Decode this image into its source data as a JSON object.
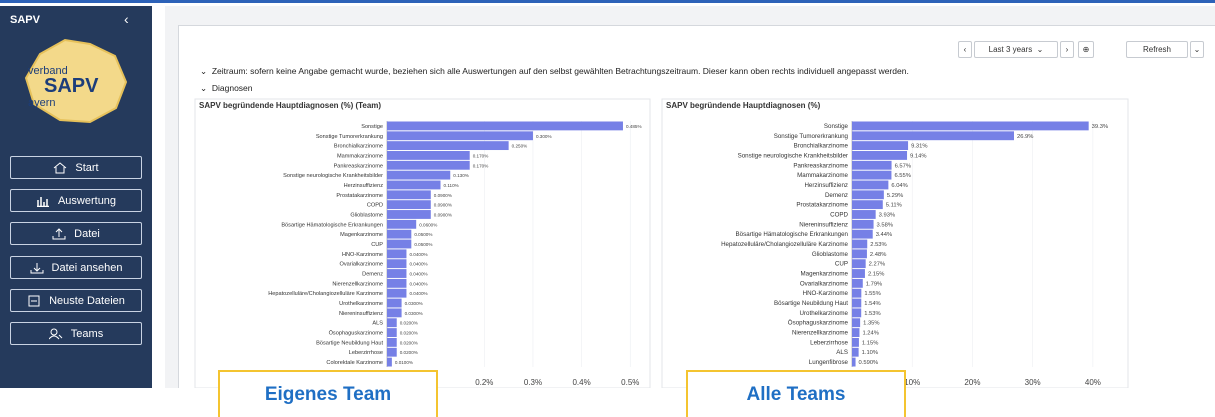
{
  "sidebar": {
    "title": "SAPV",
    "logo": {
      "top": "verband",
      "main": "SAPV",
      "bottom": "ayern"
    },
    "nav": [
      "Start",
      "Auswertung",
      "Datei",
      "Datei ansehen",
      "Neuste Dateien",
      "Teams"
    ]
  },
  "toolbar": {
    "range": "Last 3 years",
    "refresh": "Refresh"
  },
  "sections": [
    "Zeitraum: sofern keine Angabe gemacht wurde, beziehen sich alle Auswertungen auf den selbst gewählten Betrachtungszeitraum. Dieser kann oben rechts individuell angepasst werden.",
    "Diagnosen"
  ],
  "chart_data": [
    {
      "type": "bar",
      "orientation": "horizontal",
      "title": "SAPV begründende Hauptdiagnosen (%) (Team)",
      "color": "#7680e6",
      "grid": true,
      "categories": [
        "Sonstige",
        "Sonstige Tumorerkrankung",
        "Bronchialkarzinome",
        "Mammakarzinome",
        "Pankreaskarzinome",
        "Sonstige neurologische Krankheitsbilder",
        "Herzinsuffizienz",
        "Prostatakarzinome",
        "COPD",
        "Glioblastome",
        "Bösartige Hämatologische Erkrankungen",
        "Magenkarzinome",
        "CUP",
        "HNO-Karzinome",
        "Ovarialkarzinome",
        "Demenz",
        "Nierenzellkarzinome",
        "Hepatozelluläre/Cholangiozelluläre Karzinome",
        "Urothelkarzinome",
        "Niereninsuffizienz",
        "ALS",
        "Ösophaguskarzinome",
        "Bösartige Neubildung Haut",
        "Leberzirrhose",
        "Colorektale Karzinome"
      ],
      "values": [
        0.485,
        0.3,
        0.25,
        0.17,
        0.17,
        0.13,
        0.11,
        0.09,
        0.09,
        0.09,
        0.06,
        0.05,
        0.05,
        0.04,
        0.04,
        0.04,
        0.04,
        0.04,
        0.03,
        0.03,
        0.02,
        0.02,
        0.02,
        0.02,
        0.01
      ],
      "value_labels": [
        "0.485%",
        "0.300%",
        "0.250%",
        "0.170%",
        "0.170%",
        "0.130%",
        "0.110%",
        "0.0900%",
        "0.0900%",
        "0.0900%",
        "0.0600%",
        "0.0500%",
        "0.0500%",
        "0.0400%",
        "0.0400%",
        "0.0400%",
        "0.0400%",
        "0.0400%",
        "0.0300%",
        "0.0300%",
        "0.0200%",
        "0.0200%",
        "0.0200%",
        "0.0200%",
        "0.0100%"
      ],
      "xlim": [
        0,
        0.52
      ],
      "xticks": [
        {
          "value": 0.2,
          "label": "0.2%"
        },
        {
          "value": 0.3,
          "label": "0.3%"
        },
        {
          "value": 0.4,
          "label": "0.4%"
        },
        {
          "value": 0.5,
          "label": "0.5%"
        }
      ]
    },
    {
      "type": "bar",
      "orientation": "horizontal",
      "title": "SAPV begründende Hauptdiagnosen (%)",
      "color": "#7680e6",
      "grid": true,
      "categories": [
        "Sonstige",
        "Sonstige Tumorerkrankung",
        "Bronchialkarzinome",
        "Sonstige neurologische Krankheitsbilder",
        "Pankreaskarzinome",
        "Mammakarzinome",
        "Herzinsuffizienz",
        "Demenz",
        "Prostatakarzinome",
        "COPD",
        "Niereninsuffizienz",
        "Bösartige Hämatologische Erkrankungen",
        "Hepatozelluläre/Cholangiozelluläre Karzinome",
        "Glioblastome",
        "CUP",
        "Magenkarzinome",
        "Ovarialkarzinome",
        "HNO-Karzinome",
        "Bösartige Neubildung Haut",
        "Urothelkarzinome",
        "Ösophaguskarzinome",
        "Nierenzellkarzinome",
        "Leberzirrhose",
        "ALS",
        "Lungenfibrose"
      ],
      "values": [
        39.3,
        26.9,
        9.31,
        9.14,
        6.57,
        6.55,
        6.04,
        5.29,
        5.11,
        3.93,
        3.58,
        3.44,
        2.53,
        2.48,
        2.27,
        2.15,
        1.79,
        1.55,
        1.54,
        1.53,
        1.35,
        1.24,
        1.15,
        1.1,
        0.59
      ],
      "value_labels": [
        "39.3%",
        "26.9%",
        "9.31%",
        "9.14%",
        "6.57%",
        "6.55%",
        "6.04%",
        "5.29%",
        "5.11%",
        "3.93%",
        "3.58%",
        "3.44%",
        "2.53%",
        "2.48%",
        "2.27%",
        "2.15%",
        "1.79%",
        "1.55%",
        "1.54%",
        "1.53%",
        "1.35%",
        "1.24%",
        "1.15%",
        "1.10%",
        "0.590%"
      ],
      "xlim": [
        0,
        45
      ],
      "xticks": [
        {
          "value": 10,
          "label": "10%"
        },
        {
          "value": 20,
          "label": "20%"
        },
        {
          "value": 30,
          "label": "30%"
        },
        {
          "value": 40,
          "label": "40%"
        }
      ]
    }
  ],
  "callouts": [
    "Eigenes Team",
    "Alle Teams"
  ]
}
